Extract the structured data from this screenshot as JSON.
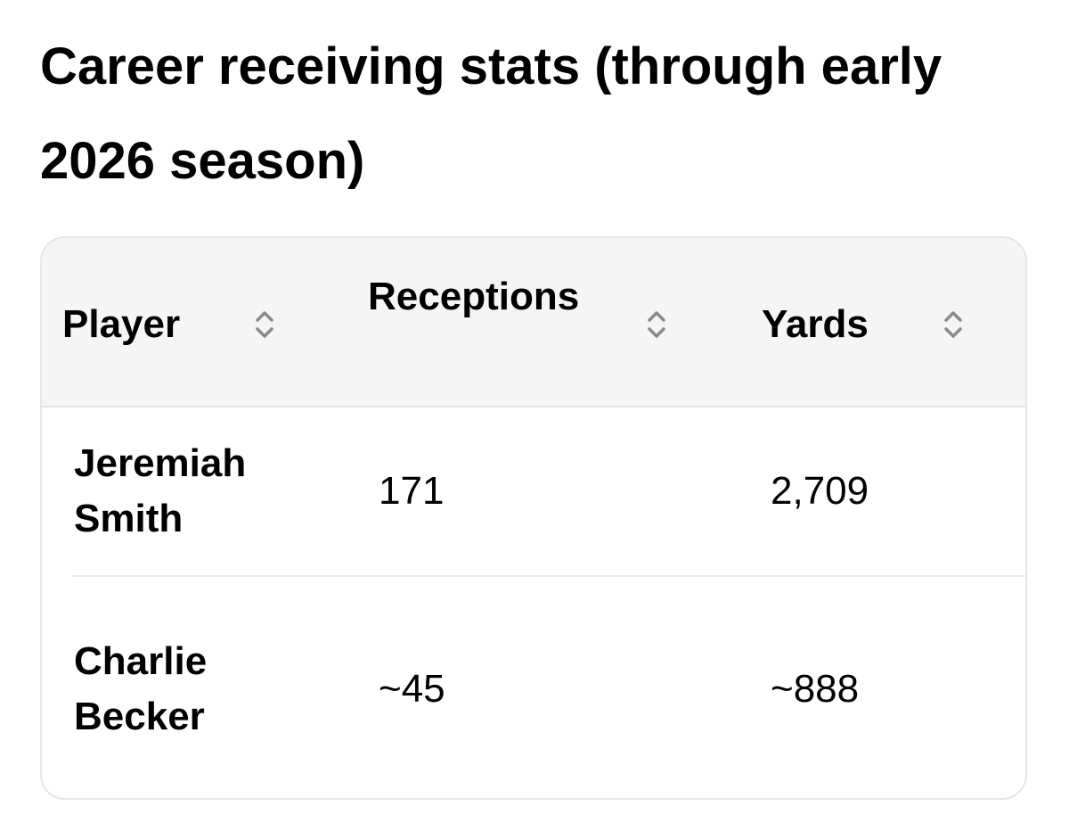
{
  "title": "Career receiving stats (through early 2026 season)",
  "table": {
    "columns": [
      "Player",
      "Receptions",
      "Yards"
    ],
    "rows": [
      [
        "Jeremiah Smith",
        "171",
        "2,709"
      ],
      [
        "Charlie Becker",
        "~45",
        "~888"
      ]
    ]
  }
}
